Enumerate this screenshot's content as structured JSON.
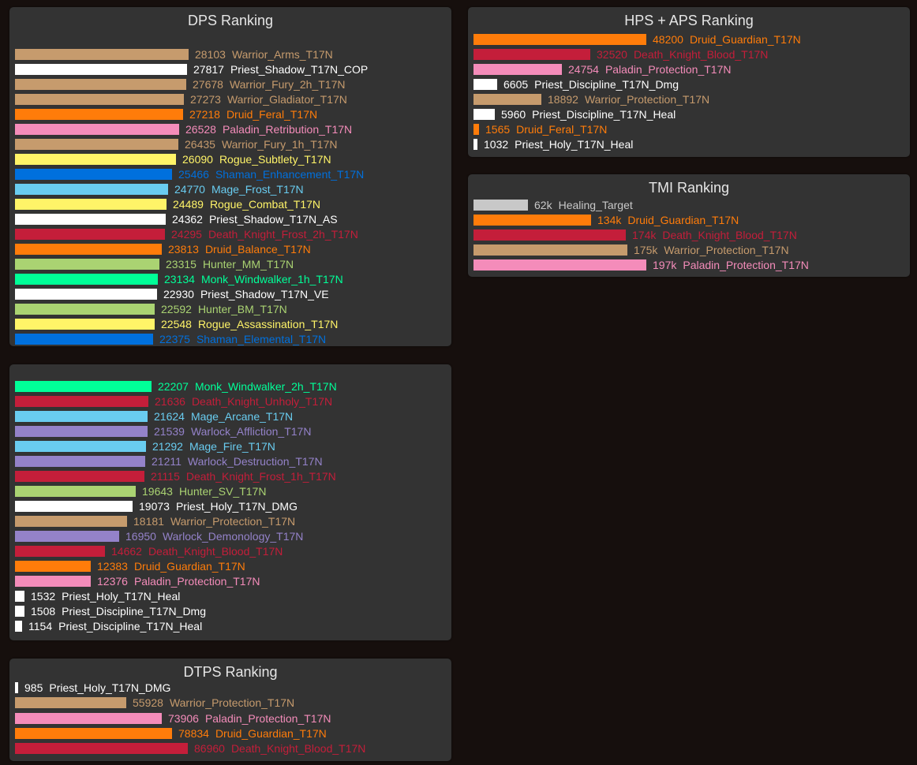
{
  "colors": {
    "Warrior": "#C69B6D",
    "Priest": "#FFFFFF",
    "Druid": "#FF7C0A",
    "Paladin": "#F48CBA",
    "Rogue": "#FFF468",
    "Shaman": "#0070DD",
    "Mage": "#69CCF0",
    "DeathKnight": "#C41E3A",
    "Hunter": "#AAD372",
    "Monk": "#00FF98",
    "Warlock": "#9482C9",
    "Target": "#C8C8C8"
  },
  "chart_data": [
    {
      "id": "dps1",
      "type": "bar",
      "orientation": "horizontal",
      "title": "DPS Ranking",
      "categories": [
        "Warrior_Arms_T17N",
        "Priest_Shadow_T17N_COP",
        "Warrior_Fury_2h_T17N",
        "Warrior_Gladiator_T17N",
        "Druid_Feral_T17N",
        "Paladin_Retribution_T17N",
        "Warrior_Fury_1h_T17N",
        "Rogue_Subtlety_T17N",
        "Shaman_Enhancement_T17N",
        "Mage_Frost_T17N",
        "Rogue_Combat_T17N",
        "Priest_Shadow_T17N_AS",
        "Death_Knight_Frost_2h_T17N",
        "Druid_Balance_T17N",
        "Hunter_MM_T17N",
        "Monk_Windwalker_1h_T17N",
        "Priest_Shadow_T17N_VE",
        "Hunter_BM_T17N",
        "Rogue_Assassination_T17N",
        "Shaman_Elemental_T17N"
      ],
      "values": [
        28103,
        27817,
        27678,
        27273,
        27218,
        26528,
        26435,
        26090,
        25466,
        24770,
        24489,
        24362,
        24295,
        23813,
        23315,
        23134,
        22930,
        22592,
        22548,
        22375
      ],
      "labels": [
        "28103",
        "27817",
        "27678",
        "27273",
        "27218",
        "26528",
        "26435",
        "26090",
        "25466",
        "24770",
        "24489",
        "24362",
        "24295",
        "23813",
        "23315",
        "23134",
        "22930",
        "22592",
        "22548",
        "22375"
      ],
      "classes": [
        "Warrior",
        "Priest",
        "Warrior",
        "Warrior",
        "Druid",
        "Paladin",
        "Warrior",
        "Rogue",
        "Shaman",
        "Mage",
        "Rogue",
        "Priest",
        "DeathKnight",
        "Druid",
        "Hunter",
        "Monk",
        "Priest",
        "Hunter",
        "Rogue",
        "Shaman"
      ]
    },
    {
      "id": "dps2",
      "type": "bar",
      "orientation": "horizontal",
      "title": "",
      "categories": [
        "Monk_Windwalker_2h_T17N",
        "Death_Knight_Unholy_T17N",
        "Mage_Arcane_T17N",
        "Warlock_Affliction_T17N",
        "Mage_Fire_T17N",
        "Warlock_Destruction_T17N",
        "Death_Knight_Frost_1h_T17N",
        "Hunter_SV_T17N",
        "Priest_Holy_T17N_DMG",
        "Warrior_Protection_T17N",
        "Warlock_Demonology_T17N",
        "Death_Knight_Blood_T17N",
        "Druid_Guardian_T17N",
        "Paladin_Protection_T17N",
        "Priest_Holy_T17N_Heal",
        "Priest_Discipline_T17N_Dmg",
        "Priest_Discipline_T17N_Heal"
      ],
      "values": [
        22207,
        21636,
        21624,
        21539,
        21292,
        21211,
        21115,
        19643,
        19073,
        18181,
        16950,
        14662,
        12383,
        12376,
        1532,
        1508,
        1154
      ],
      "labels": [
        "22207",
        "21636",
        "21624",
        "21539",
        "21292",
        "21211",
        "21115",
        "19643",
        "19073",
        "18181",
        "16950",
        "14662",
        "12383",
        "12376",
        "1532",
        "1508",
        "1154"
      ],
      "classes": [
        "Monk",
        "DeathKnight",
        "Mage",
        "Warlock",
        "Mage",
        "Warlock",
        "DeathKnight",
        "Hunter",
        "Priest",
        "Warrior",
        "Warlock",
        "DeathKnight",
        "Druid",
        "Paladin",
        "Priest",
        "Priest",
        "Priest"
      ]
    },
    {
      "id": "dtps",
      "type": "bar",
      "orientation": "horizontal",
      "title": "DTPS Ranking",
      "categories": [
        "Priest_Holy_T17N_DMG",
        "Warrior_Protection_T17N",
        "Paladin_Protection_T17N",
        "Druid_Guardian_T17N",
        "Death_Knight_Blood_T17N"
      ],
      "values": [
        985,
        55928,
        73906,
        78834,
        86960
      ],
      "labels": [
        "985",
        "55928",
        "73906",
        "78834",
        "86960"
      ],
      "classes": [
        "Priest",
        "Warrior",
        "Paladin",
        "Druid",
        "DeathKnight"
      ]
    },
    {
      "id": "hps",
      "type": "bar",
      "orientation": "horizontal",
      "title": "HPS + APS Ranking",
      "categories": [
        "Druid_Guardian_T17N",
        "Death_Knight_Blood_T17N",
        "Paladin_Protection_T17N",
        "Priest_Discipline_T17N_Dmg",
        "Warrior_Protection_T17N",
        "Priest_Discipline_T17N_Heal",
        "Druid_Feral_T17N",
        "Priest_Holy_T17N_Heal"
      ],
      "values": [
        48200,
        32520,
        24754,
        6605,
        18892,
        5960,
        1565,
        1032
      ],
      "labels": [
        "48200",
        "32520",
        "24754",
        "6605",
        "18892",
        "5960",
        "1565",
        "1032"
      ],
      "classes": [
        "Druid",
        "DeathKnight",
        "Paladin",
        "Priest",
        "Warrior",
        "Priest",
        "Druid",
        "Priest"
      ]
    },
    {
      "id": "tmi",
      "type": "bar",
      "orientation": "horizontal",
      "title": "TMI Ranking",
      "categories": [
        "Healing_Target",
        "Druid_Guardian_T17N",
        "Death_Knight_Blood_T17N",
        "Warrior_Protection_T17N",
        "Paladin_Protection_T17N"
      ],
      "values": [
        62,
        134,
        174,
        175,
        197
      ],
      "labels": [
        "62k",
        "134k",
        "174k",
        "175k",
        "197k"
      ],
      "classes": [
        "Target",
        "Druid",
        "DeathKnight",
        "Warrior",
        "Paladin"
      ]
    }
  ]
}
